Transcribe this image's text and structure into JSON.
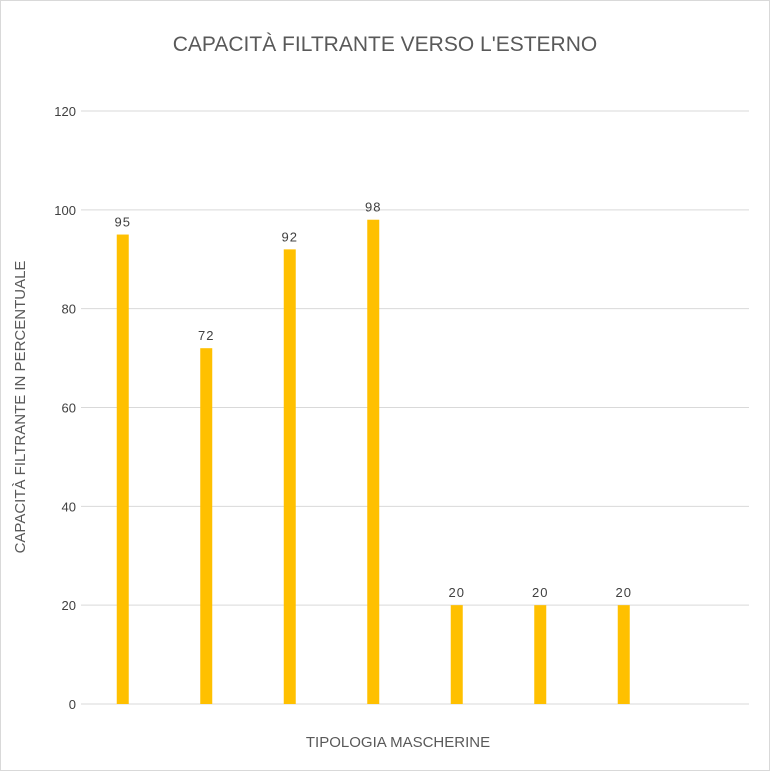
{
  "chart_data": {
    "type": "bar",
    "title": "CAPACITÀ FILTRANTE VERSO L'ESTERNO",
    "xlabel": "TIPOLOGIA MASCHERINE",
    "ylabel": "CAPACITÀ FILTRANTE IN PERCENTUALE",
    "categories": [
      "",
      "",
      "",
      "",
      "",
      "",
      "",
      ""
    ],
    "values": [
      95,
      72,
      92,
      98,
      20,
      20,
      20,
      null
    ],
    "data_labels": [
      "95",
      "72",
      "92",
      "98",
      "20",
      "20",
      "20",
      ""
    ],
    "ylim": [
      0,
      120
    ],
    "yticks": [
      "0",
      "20",
      "40",
      "60",
      "80",
      "100",
      "120"
    ],
    "grid": true,
    "legend": "none",
    "colors": {
      "bar": "#FFC000",
      "grid": "#D9D9D9",
      "title": "#595959",
      "axis_text": "#404040"
    }
  }
}
